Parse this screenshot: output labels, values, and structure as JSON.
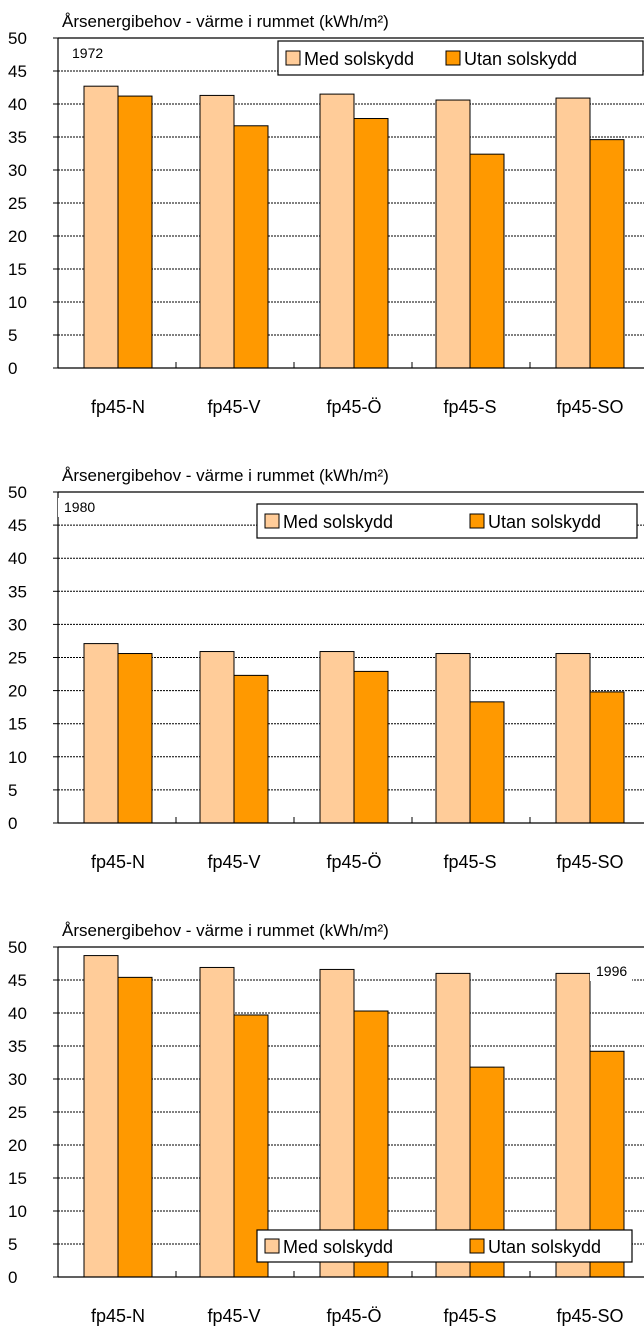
{
  "chart_data": [
    {
      "type": "bar",
      "title": "Årsenergibehov - värme i rummet (kWh/m²)",
      "annotation": "1972",
      "categories": [
        "fp45-N",
        "fp45-V",
        "fp45-Ö",
        "fp45-S",
        "fp45-SO"
      ],
      "series": [
        {
          "name": "Med solskydd",
          "color": "#FFCC99",
          "values": [
            42.7,
            41.3,
            41.5,
            40.6,
            40.9
          ]
        },
        {
          "name": "Utan solskydd",
          "color": "#FF9900",
          "values": [
            41.2,
            36.7,
            37.8,
            32.4,
            34.6
          ]
        }
      ],
      "ylim": [
        0,
        50
      ],
      "yticks": [
        "0",
        "5",
        "10",
        "15",
        "20",
        "25",
        "30",
        "35",
        "40",
        "45",
        "50"
      ],
      "grid": true,
      "legend_position": "top-right"
    },
    {
      "type": "bar",
      "title": "Årsenergibehov - värme i rummet (kWh/m²)",
      "annotation": "1980",
      "categories": [
        "fp45-N",
        "fp45-V",
        "fp45-Ö",
        "fp45-S",
        "fp45-SO"
      ],
      "series": [
        {
          "name": "Med solskydd",
          "color": "#FFCC99",
          "values": [
            27.1,
            25.9,
            25.9,
            25.6,
            25.6
          ]
        },
        {
          "name": "Utan solskydd",
          "color": "#FF9900",
          "values": [
            25.6,
            22.3,
            22.9,
            18.3,
            19.8
          ]
        }
      ],
      "ylim": [
        0,
        50
      ],
      "yticks": [
        "0",
        "5",
        "10",
        "15",
        "20",
        "25",
        "30",
        "35",
        "40",
        "45",
        "50"
      ],
      "grid": true,
      "legend_position": "top-right"
    },
    {
      "type": "bar",
      "title": "Årsenergibehov - värme i rummet (kWh/m²)",
      "annotation": "1996",
      "categories": [
        "fp45-N",
        "fp45-V",
        "fp45-Ö",
        "fp45-S",
        "fp45-SO"
      ],
      "series": [
        {
          "name": "Med solskydd",
          "color": "#FFCC99",
          "values": [
            48.7,
            46.9,
            46.6,
            46.0,
            46.0
          ]
        },
        {
          "name": "Utan solskydd",
          "color": "#FF9900",
          "values": [
            45.4,
            39.7,
            40.3,
            31.8,
            34.2
          ]
        }
      ],
      "ylim": [
        0,
        50
      ],
      "yticks": [
        "0",
        "5",
        "10",
        "15",
        "20",
        "25",
        "30",
        "35",
        "40",
        "45",
        "50"
      ],
      "grid": true,
      "legend_position": "bottom-right"
    }
  ]
}
